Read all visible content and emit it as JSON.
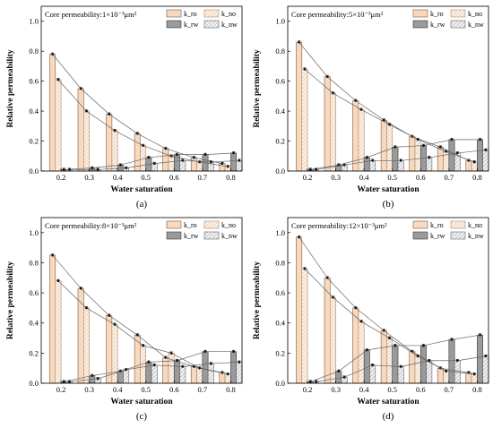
{
  "legend": {
    "kro": "k_ro",
    "krw": "k_rw",
    "kno": "k_no",
    "knw": "k_nw"
  },
  "colors": {
    "kro_fill": "#f9d9bd",
    "kro_stroke": "#7a5a44",
    "krw_fill": "#9a9a9a",
    "krw_stroke": "#3a3a3a",
    "hatch": "#b8b8b8",
    "line": "#666666"
  },
  "chart_data": [
    {
      "id": "a",
      "type": "bar",
      "panel_label": "(a)",
      "annotation": "Core permeability:1×10⁻³μm²",
      "xlabel": "Water saturation",
      "ylabel": "Relative permeability",
      "ylim": [
        0,
        1.1
      ],
      "yticks": [
        0.0,
        0.2,
        0.4,
        0.6,
        0.8,
        1.0
      ],
      "xticks": [
        0.2,
        0.3,
        0.4,
        0.5,
        0.6,
        0.7,
        0.8
      ],
      "xlim": [
        0.13,
        0.84
      ],
      "grid": false,
      "legend_position": "top-right",
      "series": [
        {
          "key": "kro",
          "x": [
            0.17,
            0.27,
            0.37,
            0.47,
            0.57,
            0.67,
            0.77
          ],
          "values": [
            0.78,
            0.55,
            0.38,
            0.25,
            0.15,
            0.09,
            0.05
          ]
        },
        {
          "key": "kno",
          "x": [
            0.19,
            0.29,
            0.39,
            0.49,
            0.59,
            0.69,
            0.79
          ],
          "values": [
            0.61,
            0.4,
            0.27,
            0.17,
            0.1,
            0.06,
            0.03
          ]
        },
        {
          "key": "krw",
          "x": [
            0.21,
            0.31,
            0.41,
            0.51,
            0.61,
            0.71,
            0.81
          ],
          "values": [
            0.01,
            0.02,
            0.04,
            0.09,
            0.11,
            0.11,
            0.12
          ]
        },
        {
          "key": "knw",
          "x": [
            0.23,
            0.33,
            0.43,
            0.53,
            0.63,
            0.73,
            0.83
          ],
          "values": [
            0.01,
            0.01,
            0.02,
            0.05,
            0.07,
            0.06,
            0.07
          ]
        }
      ]
    },
    {
      "id": "b",
      "type": "bar",
      "panel_label": "(b)",
      "annotation": "Core permeability:5×10⁻³μm²",
      "xlabel": "Water saturation",
      "ylabel": "Relative permeability",
      "ylim": [
        0,
        1.1
      ],
      "yticks": [
        0.0,
        0.2,
        0.4,
        0.6,
        0.8,
        1.0
      ],
      "xticks": [
        0.2,
        0.3,
        0.4,
        0.5,
        0.6,
        0.7,
        0.8
      ],
      "xlim": [
        0.13,
        0.84
      ],
      "grid": false,
      "legend_position": "top-right",
      "series": [
        {
          "key": "kro",
          "x": [
            0.17,
            0.27,
            0.37,
            0.47,
            0.57,
            0.67,
            0.77
          ],
          "values": [
            0.86,
            0.63,
            0.47,
            0.34,
            0.23,
            0.16,
            0.07
          ]
        },
        {
          "key": "kno",
          "x": [
            0.19,
            0.29,
            0.39,
            0.49,
            0.59,
            0.69,
            0.79
          ],
          "values": [
            0.68,
            0.52,
            0.41,
            0.31,
            0.21,
            0.13,
            0.06
          ]
        },
        {
          "key": "krw",
          "x": [
            0.21,
            0.31,
            0.41,
            0.51,
            0.61,
            0.71,
            0.81
          ],
          "values": [
            0.01,
            0.04,
            0.09,
            0.16,
            0.17,
            0.21,
            0.21
          ]
        },
        {
          "key": "knw",
          "x": [
            0.23,
            0.33,
            0.43,
            0.53,
            0.63,
            0.73,
            0.83
          ],
          "values": [
            0.01,
            0.04,
            0.07,
            0.07,
            0.09,
            0.12,
            0.14
          ]
        }
      ]
    },
    {
      "id": "c",
      "type": "bar",
      "panel_label": "(c)",
      "annotation": "Core permeability:8×10⁻³μm²",
      "xlabel": "Water saturation",
      "ylabel": "Relative permeability",
      "ylim": [
        0,
        1.1
      ],
      "yticks": [
        0.0,
        0.2,
        0.4,
        0.6,
        0.8,
        1.0
      ],
      "xticks": [
        0.2,
        0.3,
        0.4,
        0.5,
        0.6,
        0.7,
        0.8
      ],
      "xlim": [
        0.13,
        0.84
      ],
      "grid": false,
      "legend_position": "top-right",
      "series": [
        {
          "key": "kro",
          "x": [
            0.17,
            0.27,
            0.37,
            0.47,
            0.57,
            0.67,
            0.77
          ],
          "values": [
            0.85,
            0.63,
            0.45,
            0.32,
            0.17,
            0.11,
            0.07
          ]
        },
        {
          "key": "kno",
          "x": [
            0.19,
            0.29,
            0.39,
            0.49,
            0.59,
            0.69,
            0.79
          ],
          "values": [
            0.68,
            0.5,
            0.39,
            0.25,
            0.2,
            0.1,
            0.06
          ]
        },
        {
          "key": "krw",
          "x": [
            0.21,
            0.31,
            0.41,
            0.51,
            0.61,
            0.71,
            0.81
          ],
          "values": [
            0.01,
            0.05,
            0.08,
            0.14,
            0.15,
            0.21,
            0.21
          ]
        },
        {
          "key": "knw",
          "x": [
            0.23,
            0.33,
            0.43,
            0.53,
            0.63,
            0.73,
            0.83
          ],
          "values": [
            0.01,
            0.03,
            0.09,
            0.12,
            0.11,
            0.13,
            0.14
          ]
        }
      ]
    },
    {
      "id": "d",
      "type": "bar",
      "panel_label": "(d)",
      "annotation": "Core permeability:12×10⁻³μm²",
      "xlabel": "Water saturation",
      "ylabel": "Relative permeability",
      "ylim": [
        0,
        1.1
      ],
      "yticks": [
        0.0,
        0.2,
        0.4,
        0.6,
        0.8,
        1.0
      ],
      "xticks": [
        0.2,
        0.3,
        0.4,
        0.5,
        0.6,
        0.7,
        0.8
      ],
      "xlim": [
        0.13,
        0.84
      ],
      "grid": false,
      "legend_position": "top-right",
      "series": [
        {
          "key": "kro",
          "x": [
            0.17,
            0.27,
            0.37,
            0.47,
            0.57,
            0.67,
            0.77
          ],
          "values": [
            0.97,
            0.7,
            0.5,
            0.35,
            0.21,
            0.1,
            0.07
          ]
        },
        {
          "key": "kno",
          "x": [
            0.19,
            0.29,
            0.39,
            0.49,
            0.59,
            0.69,
            0.79
          ],
          "values": [
            0.76,
            0.57,
            0.41,
            0.3,
            0.18,
            0.08,
            0.06
          ]
        },
        {
          "key": "krw",
          "x": [
            0.21,
            0.31,
            0.41,
            0.51,
            0.61,
            0.71,
            0.81
          ],
          "values": [
            0.01,
            0.08,
            0.22,
            0.25,
            0.25,
            0.29,
            0.32
          ]
        },
        {
          "key": "knw",
          "x": [
            0.23,
            0.33,
            0.43,
            0.53,
            0.63,
            0.73,
            0.83
          ],
          "values": [
            0.01,
            0.04,
            0.12,
            0.11,
            0.15,
            0.15,
            0.18
          ]
        }
      ]
    }
  ]
}
